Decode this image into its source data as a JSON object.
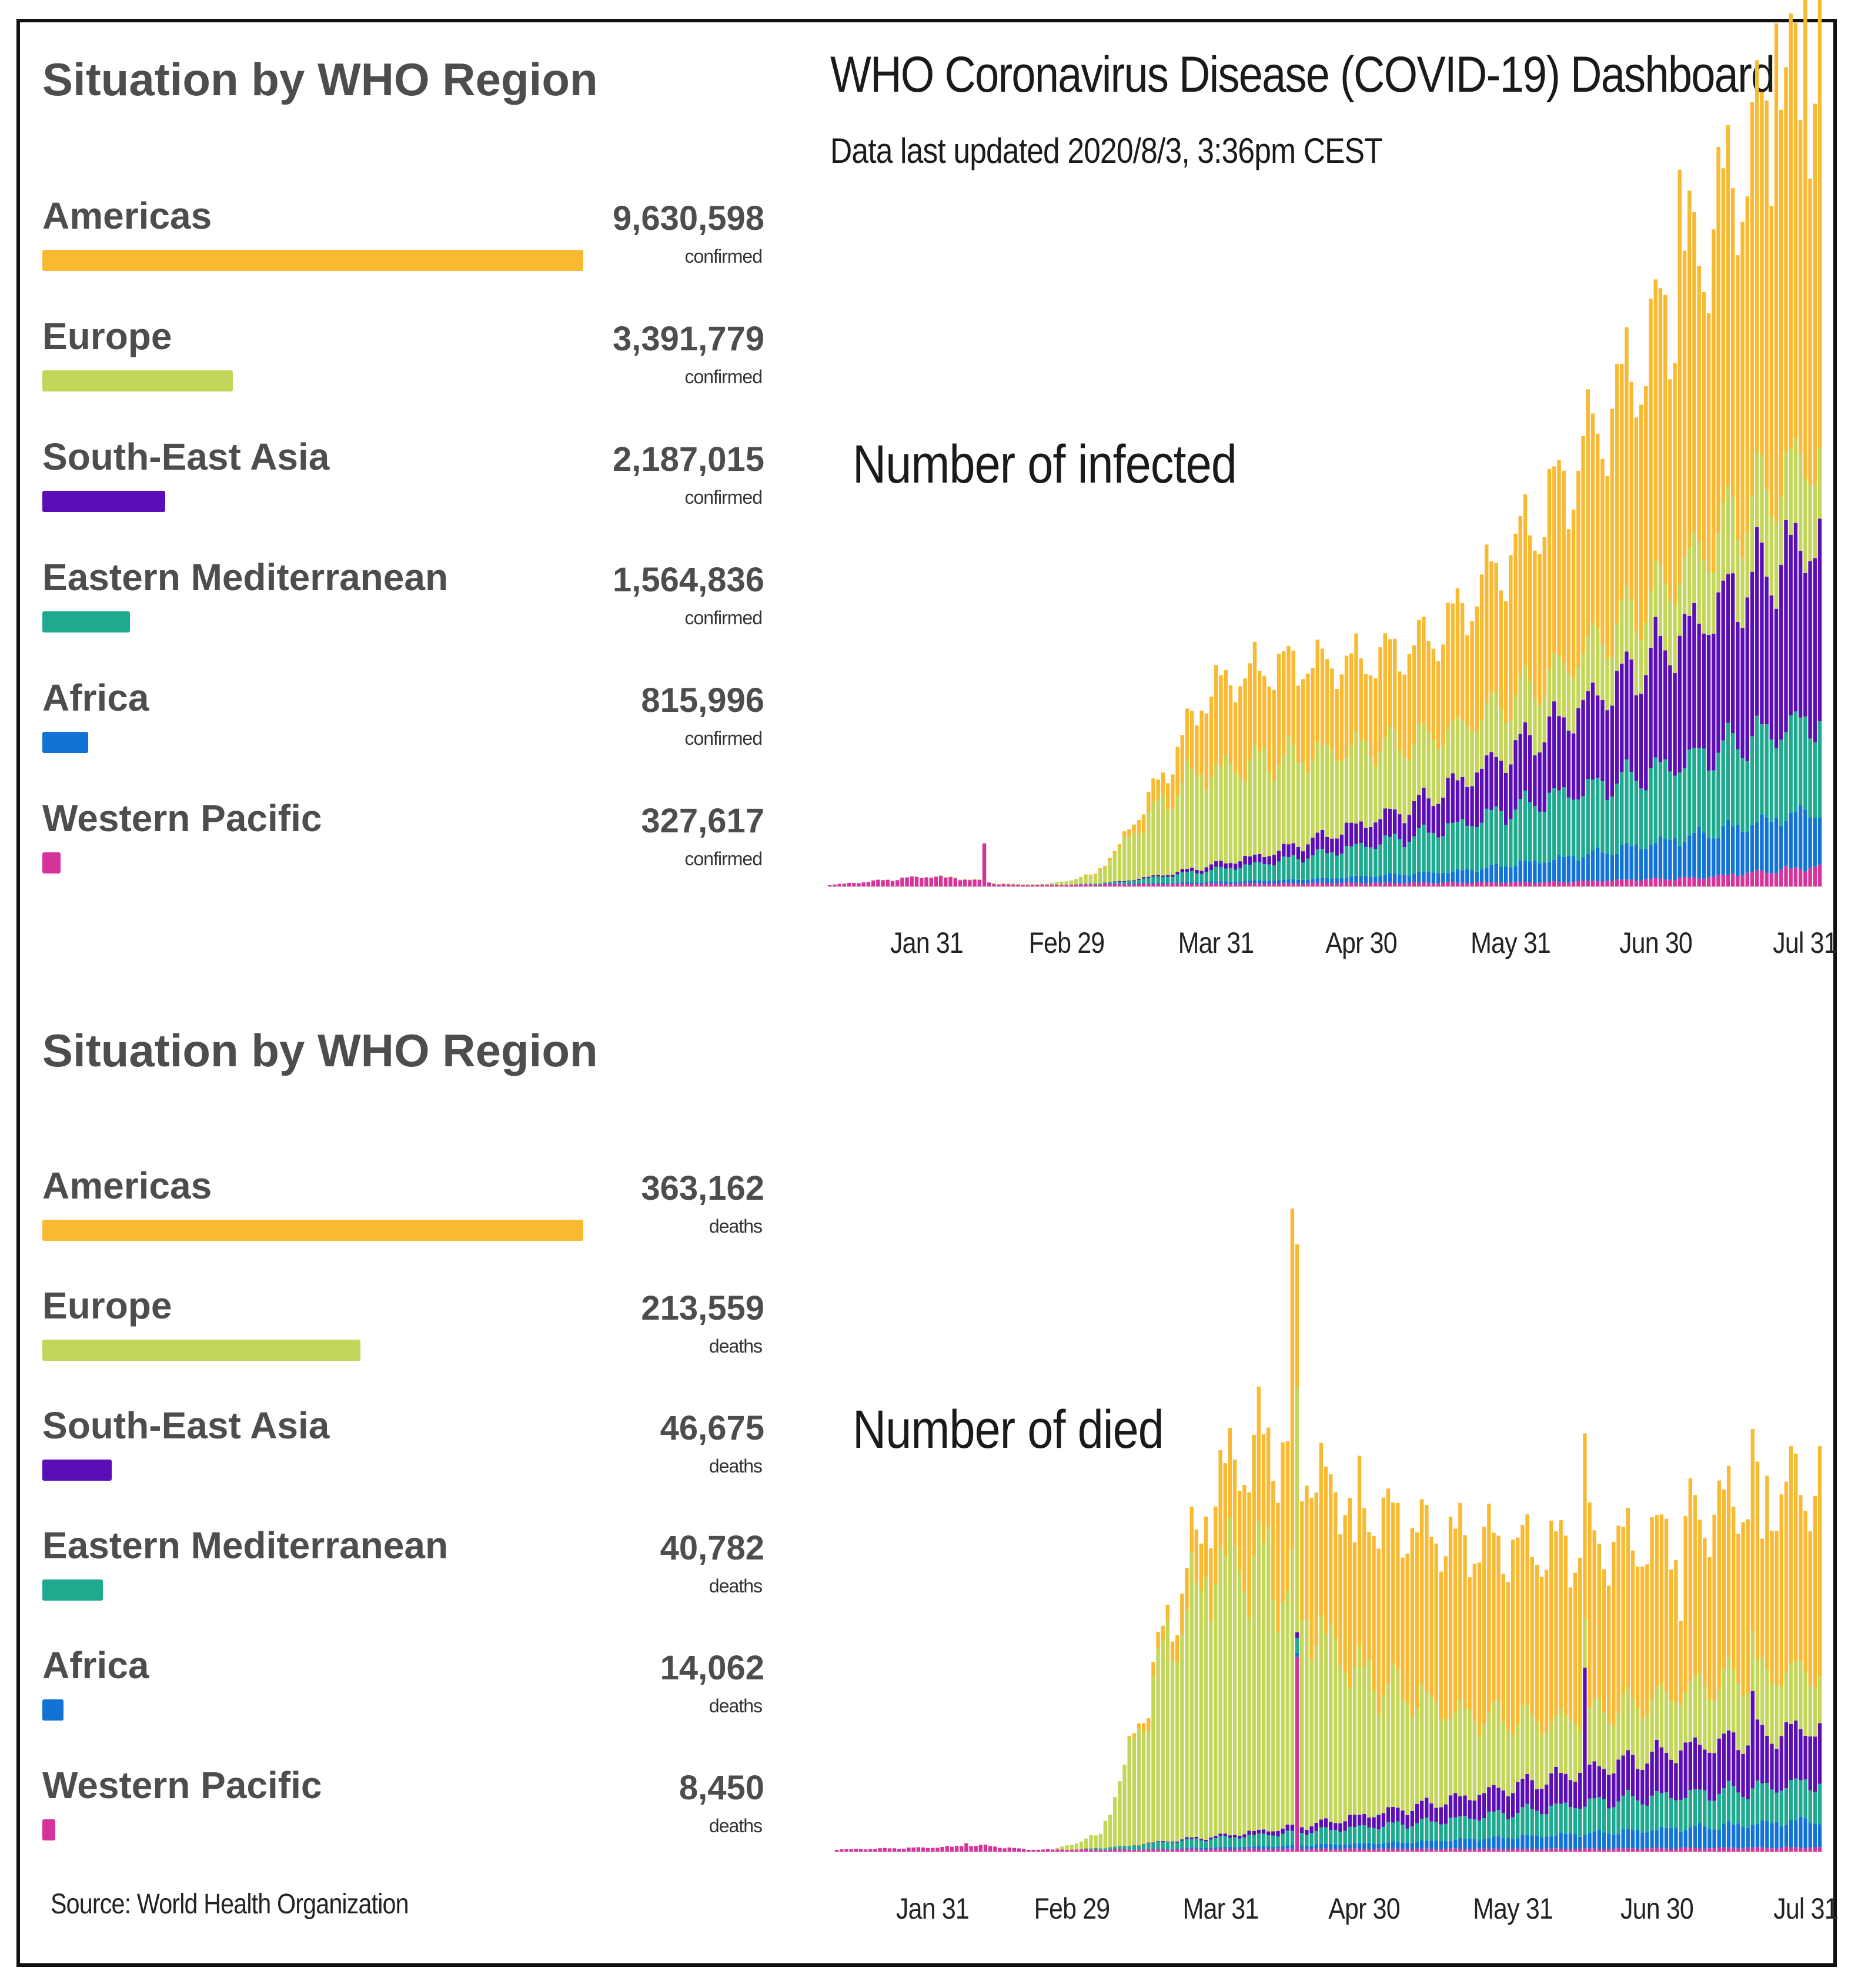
{
  "dashboard": {
    "title": "WHO Coronavirus Disease (COVID-19) Dashboard",
    "updated": "Data last updated 2020/8/3, 3:36pm CEST"
  },
  "panels": [
    {
      "heading": "Situation by WHO Region",
      "chart_label": "Number of infected",
      "regions": [
        {
          "name": "Americas",
          "value": "9,630,598",
          "unit": "confirmed",
          "color": "#F9B930"
        },
        {
          "name": "Europe",
          "value": "3,391,779",
          "unit": "confirmed",
          "color": "#C4D65A"
        },
        {
          "name": "South-East Asia",
          "value": "2,187,015",
          "unit": "confirmed",
          "color": "#5B0EB5"
        },
        {
          "name": "Eastern Mediterranean",
          "value": "1,564,836",
          "unit": "confirmed",
          "color": "#1EAA8E"
        },
        {
          "name": "Africa",
          "value": "815,996",
          "unit": "confirmed",
          "color": "#1273D6"
        },
        {
          "name": "Western Pacific",
          "value": "327,617",
          "unit": "confirmed",
          "color": "#D6339B"
        }
      ]
    },
    {
      "heading": "Situation by WHO Region",
      "chart_label": "Number of died",
      "regions": [
        {
          "name": "Americas",
          "value": "363,162",
          "unit": "deaths",
          "color": "#F9B930"
        },
        {
          "name": "Europe",
          "value": "213,559",
          "unit": "deaths",
          "color": "#C4D65A"
        },
        {
          "name": "South-East Asia",
          "value": "46,675",
          "unit": "deaths",
          "color": "#5B0EB5"
        },
        {
          "name": "Eastern Mediterranean",
          "value": "40,782",
          "unit": "deaths",
          "color": "#1EAA8E"
        },
        {
          "name": "Africa",
          "value": "14,062",
          "unit": "deaths",
          "color": "#1273D6"
        },
        {
          "name": "Western Pacific",
          "value": "8,450",
          "unit": "deaths",
          "color": "#D6339B"
        }
      ]
    }
  ],
  "source": "Source: World Health Organization",
  "chart_data": [
    {
      "type": "bar",
      "stacked": true,
      "title": "Number of infected",
      "x_start": "2020-01-11",
      "x_end": "2020-08-03",
      "x_ticks": [
        "Jan 31",
        "Feb 29",
        "Mar 31",
        "Apr 30",
        "May 31",
        "Jun 30",
        "Jul 31"
      ],
      "x_tick_dates": [
        "2020-01-31",
        "2020-02-29",
        "2020-03-31",
        "2020-04-30",
        "2020-05-31",
        "2020-06-30",
        "2020-07-31"
      ],
      "ylim": [
        0,
        300000
      ],
      "series": [
        {
          "name": "Western Pacific",
          "color": "#D6339B",
          "anchors": [
            [
              0,
              500
            ],
            [
              10,
              2000
            ],
            [
              20,
              3500
            ],
            [
              25,
              3000
            ],
            [
              30,
              2200
            ],
            [
              35,
              800
            ],
            [
              40,
              500
            ],
            [
              60,
              800
            ],
            [
              90,
              1000
            ],
            [
              150,
              1500
            ],
            [
              180,
              3000
            ],
            [
              205,
              7000
            ]
          ],
          "spikes": [
            [
              32,
              15000
            ]
          ]
        },
        {
          "name": "Africa",
          "color": "#1273D6",
          "anchors": [
            [
              0,
              0
            ],
            [
              50,
              0
            ],
            [
              70,
              400
            ],
            [
              100,
              1500
            ],
            [
              130,
              4000
            ],
            [
              160,
              10000
            ],
            [
              180,
              15000
            ],
            [
              205,
              20000
            ]
          ]
        },
        {
          "name": "Eastern Mediterranean",
          "color": "#1EAA8E",
          "anchors": [
            [
              0,
              0
            ],
            [
              50,
              0
            ],
            [
              60,
              500
            ],
            [
              70,
              2500
            ],
            [
              90,
              6000
            ],
            [
              120,
              13000
            ],
            [
              150,
              22000
            ],
            [
              170,
              25000
            ],
            [
              190,
              30000
            ],
            [
              205,
              32000
            ]
          ]
        },
        {
          "name": "South-East Asia",
          "color": "#5B0EB5",
          "anchors": [
            [
              0,
              0
            ],
            [
              55,
              0
            ],
            [
              70,
              600
            ],
            [
              90,
              3000
            ],
            [
              120,
              10000
            ],
            [
              150,
              25000
            ],
            [
              170,
              40000
            ],
            [
              190,
              55000
            ],
            [
              205,
              65000
            ]
          ]
        },
        {
          "name": "Europe",
          "color": "#C4D65A",
          "anchors": [
            [
              0,
              0
            ],
            [
              45,
              300
            ],
            [
              55,
              3000
            ],
            [
              65,
              20000
            ],
            [
              75,
              33000
            ],
            [
              90,
              33000
            ],
            [
              110,
              27000
            ],
            [
              130,
              19000
            ],
            [
              150,
              18000
            ],
            [
              170,
              21000
            ],
            [
              190,
              27000
            ],
            [
              205,
              30000
            ]
          ]
        },
        {
          "name": "Americas",
          "color": "#F9B930",
          "anchors": [
            [
              0,
              0
            ],
            [
              50,
              0
            ],
            [
              60,
              1000
            ],
            [
              70,
              10000
            ],
            [
              80,
              30000
            ],
            [
              95,
              33000
            ],
            [
              110,
              30000
            ],
            [
              125,
              35000
            ],
            [
              140,
              50000
            ],
            [
              155,
              68000
            ],
            [
              170,
              90000
            ],
            [
              185,
              115000
            ],
            [
              195,
              130000
            ],
            [
              205,
              130000
            ]
          ],
          "spikes": [
            [
              176,
              145000
            ],
            [
              196,
              175000
            ],
            [
              202,
              180000
            ]
          ]
        }
      ]
    },
    {
      "type": "bar",
      "stacked": true,
      "title": "Number of died",
      "x_start": "2020-01-11",
      "x_end": "2020-08-03",
      "x_ticks": [
        "Jan 31",
        "Feb 29",
        "Mar 31",
        "Apr 30",
        "May 31",
        "Jun 30",
        "Jul 31"
      ],
      "x_tick_dates": [
        "2020-01-31",
        "2020-02-29",
        "2020-03-31",
        "2020-04-30",
        "2020-05-31",
        "2020-06-30",
        "2020-07-31"
      ],
      "ylim": [
        0,
        12000
      ],
      "series": [
        {
          "name": "Western Pacific",
          "color": "#D6339B",
          "anchors": [
            [
              0,
              30
            ],
            [
              20,
              60
            ],
            [
              30,
              90
            ],
            [
              40,
              30
            ],
            [
              60,
              30
            ],
            [
              90,
              40
            ],
            [
              150,
              40
            ],
            [
              205,
              60
            ]
          ],
          "spikes": [
            [
              27,
              120
            ],
            [
              96,
              2800
            ]
          ]
        },
        {
          "name": "Africa",
          "color": "#1273D6",
          "anchors": [
            [
              0,
              0
            ],
            [
              60,
              0
            ],
            [
              90,
              40
            ],
            [
              120,
              100
            ],
            [
              150,
              200
            ],
            [
              180,
              300
            ],
            [
              205,
              400
            ]
          ]
        },
        {
          "name": "Eastern Mediterranean",
          "color": "#1EAA8E",
          "anchors": [
            [
              0,
              0
            ],
            [
              50,
              0
            ],
            [
              70,
              100
            ],
            [
              100,
              200
            ],
            [
              130,
              300
            ],
            [
              160,
              450
            ],
            [
              190,
              500
            ],
            [
              205,
              550
            ]
          ]
        },
        {
          "name": "South-East Asia",
          "color": "#5B0EB5",
          "anchors": [
            [
              0,
              0
            ],
            [
              60,
              0
            ],
            [
              80,
              30
            ],
            [
              100,
              100
            ],
            [
              130,
              300
            ],
            [
              160,
              500
            ],
            [
              180,
              700
            ],
            [
              205,
              800
            ]
          ],
          "spikes": [
            [
              156,
              2000
            ],
            [
              191,
              1400
            ]
          ]
        },
        {
          "name": "Europe",
          "color": "#C4D65A",
          "anchors": [
            [
              0,
              0
            ],
            [
              45,
              0
            ],
            [
              55,
              200
            ],
            [
              62,
              1500
            ],
            [
              70,
              3000
            ],
            [
              80,
              4000
            ],
            [
              90,
              3800
            ],
            [
              100,
              2800
            ],
            [
              110,
              2000
            ],
            [
              130,
              1200
            ],
            [
              150,
              800
            ],
            [
              170,
              800
            ],
            [
              190,
              900
            ],
            [
              205,
              800
            ]
          ]
        },
        {
          "name": "Americas",
          "color": "#F9B930",
          "anchors": [
            [
              0,
              0
            ],
            [
              60,
              0
            ],
            [
              70,
              300
            ],
            [
              80,
              1200
            ],
            [
              90,
              1800
            ],
            [
              100,
              2200
            ],
            [
              110,
              2400
            ],
            [
              130,
              2500
            ],
            [
              150,
              2500
            ],
            [
              170,
              2300
            ],
            [
              190,
              2600
            ],
            [
              205,
              2700
            ]
          ],
          "spikes": [
            [
              95,
              4900
            ],
            [
              108,
              1800
            ],
            [
              176,
              1200
            ],
            [
              193,
              1700
            ]
          ]
        }
      ]
    }
  ]
}
